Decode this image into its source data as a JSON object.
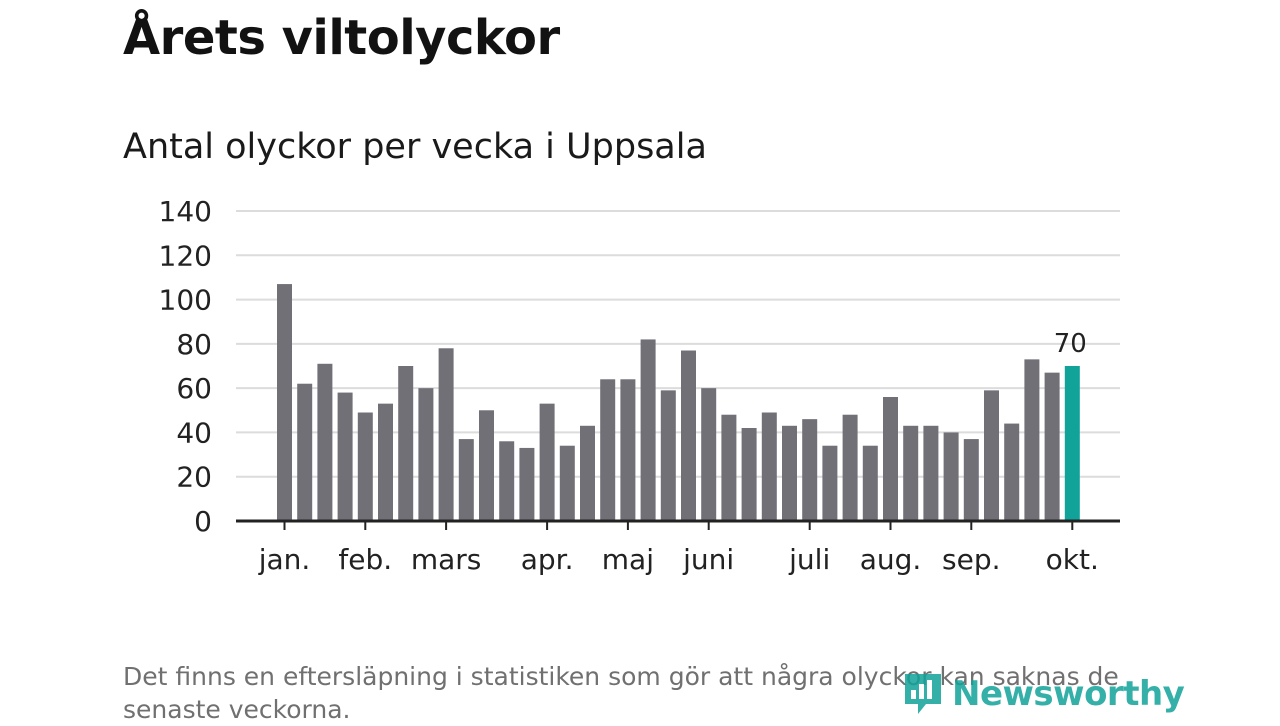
{
  "title": "Årets viltolyckor",
  "subtitle": "Antal olyckor per vecka i Uppsala",
  "footnote": "Det finns en eftersläpning i statistiken som gör att några olyckor kan saknas de senaste veckorna.",
  "brand": {
    "name": "Newsworthy",
    "icon": "newsworthy-logo-icon"
  },
  "colors": {
    "bar": "#727077",
    "highlight": "#11a39a",
    "grid": "#dcdcdc",
    "axis": "#222222",
    "text": "#222222"
  },
  "chart_data": {
    "type": "bar",
    "title": "Antal olyckor per vecka i Uppsala",
    "xlabel": "",
    "ylabel": "",
    "ylim": [
      0,
      140
    ],
    "yticks": [
      "0",
      "20",
      "40",
      "60",
      "80",
      "100",
      "120",
      "140"
    ],
    "grid": true,
    "values": [
      107,
      62,
      71,
      58,
      49,
      53,
      70,
      60,
      78,
      37,
      50,
      36,
      33,
      53,
      34,
      43,
      64,
      64,
      82,
      59,
      77,
      60,
      48,
      42,
      49,
      43,
      46,
      34,
      48,
      34,
      56,
      43,
      43,
      40,
      37,
      59,
      44,
      73,
      67,
      70
    ],
    "highlight_index": 39,
    "highlight_label": "70",
    "month_ticks": [
      {
        "label": "jan.",
        "week": 0
      },
      {
        "label": "feb.",
        "week": 4
      },
      {
        "label": "mars",
        "week": 8
      },
      {
        "label": "apr.",
        "week": 13
      },
      {
        "label": "maj",
        "week": 17
      },
      {
        "label": "juni",
        "week": 21
      },
      {
        "label": "juli",
        "week": 26
      },
      {
        "label": "aug.",
        "week": 30
      },
      {
        "label": "sep.",
        "week": 34
      },
      {
        "label": "okt.",
        "week": 39
      }
    ]
  }
}
